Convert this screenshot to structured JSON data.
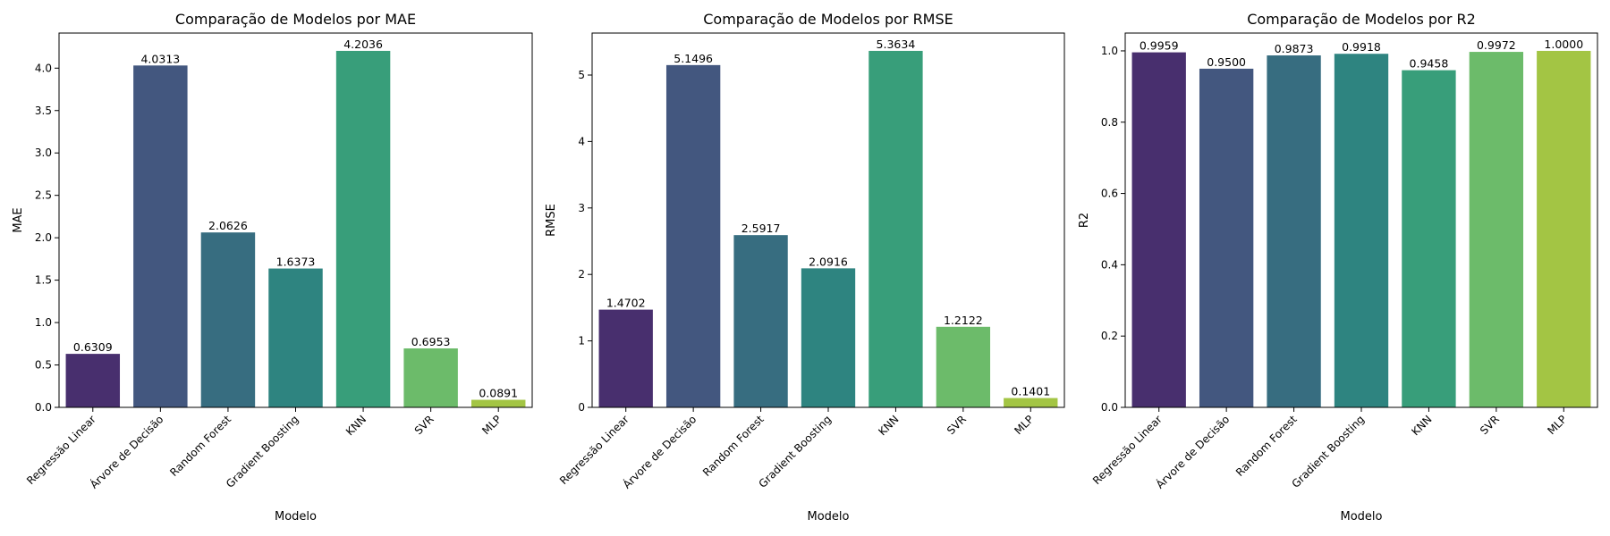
{
  "chart_data": [
    {
      "type": "bar",
      "title": "Comparação de Modelos por MAE",
      "xlabel": "Modelo",
      "ylabel": "MAE",
      "categories": [
        "Regressão Linear",
        "Árvore de Decisão",
        "Random Forest",
        "Gradient Boosting",
        "KNN",
        "SVR",
        "MLP"
      ],
      "values": [
        0.6309,
        4.0313,
        2.0626,
        1.6373,
        4.2036,
        0.6953,
        0.0891
      ],
      "value_labels": [
        "0.6309",
        "4.0313",
        "2.0626",
        "1.6373",
        "4.2036",
        "0.6953",
        "0.0891"
      ],
      "yticks": [
        0.0,
        0.5,
        1.0,
        1.5,
        2.0,
        2.5,
        3.0,
        3.5,
        4.0
      ],
      "ytick_labels": [
        "0.0",
        "0.5",
        "1.0",
        "1.5",
        "2.0",
        "2.5",
        "3.0",
        "3.5",
        "4.0"
      ],
      "ylim": [
        0,
        4.4138
      ],
      "grid": false
    },
    {
      "type": "bar",
      "title": "Comparação de Modelos por RMSE",
      "xlabel": "Modelo",
      "ylabel": "RMSE",
      "categories": [
        "Regressão Linear",
        "Árvore de Decisão",
        "Random Forest",
        "Gradient Boosting",
        "KNN",
        "SVR",
        "MLP"
      ],
      "values": [
        1.4702,
        5.1496,
        2.5917,
        2.0916,
        5.3634,
        1.2122,
        0.1401
      ],
      "value_labels": [
        "1.4702",
        "5.1496",
        "2.5917",
        "2.0916",
        "5.3634",
        "1.2122",
        "0.1401"
      ],
      "yticks": [
        0,
        1,
        2,
        3,
        4,
        5
      ],
      "ytick_labels": [
        "0",
        "1",
        "2",
        "3",
        "4",
        "5"
      ],
      "ylim": [
        0,
        5.6316
      ],
      "grid": false
    },
    {
      "type": "bar",
      "title": "Comparação de Modelos por R2",
      "xlabel": "Modelo",
      "ylabel": "R2",
      "categories": [
        "Regressão Linear",
        "Árvore de Decisão",
        "Random Forest",
        "Gradient Boosting",
        "KNN",
        "SVR",
        "MLP"
      ],
      "values": [
        0.9959,
        0.95,
        0.9873,
        0.9918,
        0.9458,
        0.9972,
        1.0
      ],
      "value_labels": [
        "0.9959",
        "0.9500",
        "0.9873",
        "0.9918",
        "0.9458",
        "0.9972",
        "1.0000"
      ],
      "yticks": [
        0.0,
        0.2,
        0.4,
        0.6,
        0.8,
        1.0
      ],
      "ytick_labels": [
        "0.0",
        "0.2",
        "0.4",
        "0.6",
        "0.8",
        "1.0"
      ],
      "ylim": [
        0,
        1.05
      ],
      "grid": false
    }
  ],
  "bar_colors": [
    "#482f6e",
    "#43577f",
    "#376d80",
    "#2e8480",
    "#389e7a",
    "#6cbb6a",
    "#a3c544"
  ]
}
